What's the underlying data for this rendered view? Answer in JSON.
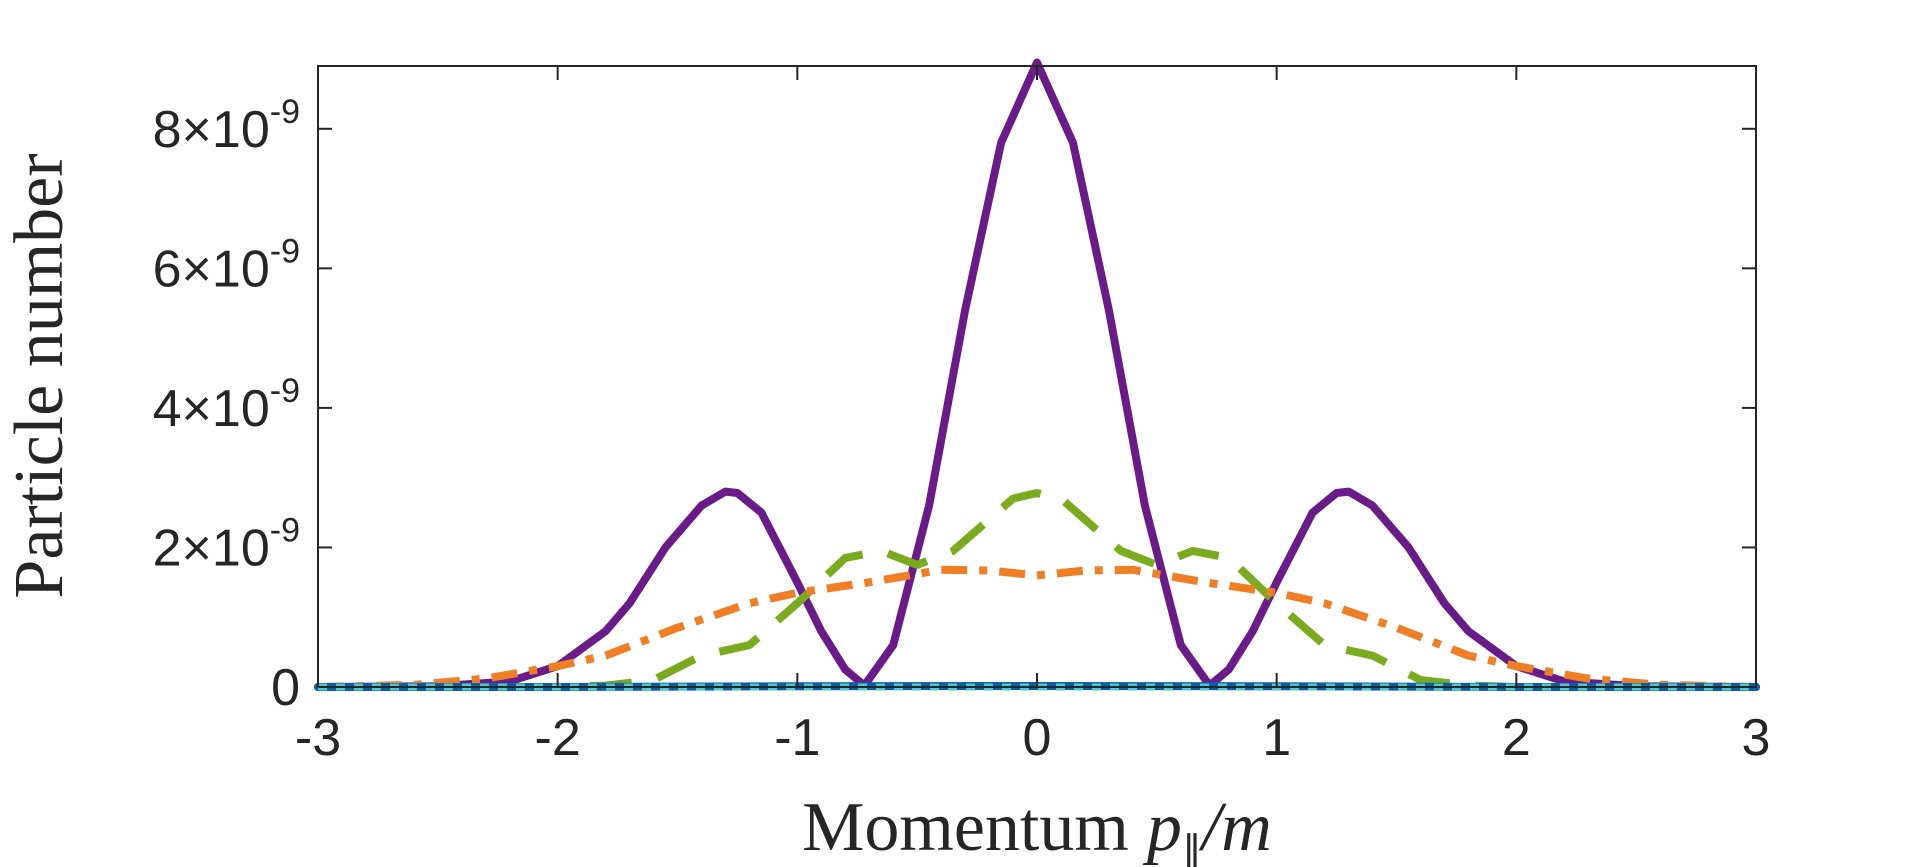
{
  "chart_data": {
    "type": "line",
    "title": "",
    "xlabel": "Momentum",
    "xlabel_math": "p",
    "xlabel_sub": "∥",
    "xlabel_div": "/m",
    "ylabel": "Particle number",
    "xlim": [
      -3,
      3
    ],
    "ylim": [
      0,
      8.9e-09
    ],
    "xticks": [
      "-3",
      "-2",
      "-1",
      "0",
      "1",
      "2",
      "3"
    ],
    "yticks": [
      {
        "mant": "0",
        "times": "",
        "exp": ""
      },
      {
        "mant": "2",
        "times": "×10",
        "exp": "-9"
      },
      {
        "mant": "4",
        "times": "×10",
        "exp": "-9"
      },
      {
        "mant": "6",
        "times": "×10",
        "exp": "-9"
      },
      {
        "mant": "8",
        "times": "×10",
        "exp": "-9"
      }
    ],
    "ytick_values": [
      0,
      2e-09,
      4e-09,
      6e-09,
      8e-09
    ],
    "series": [
      {
        "name": "solid purple",
        "color": "#6a1b8a",
        "style": "solid",
        "x": [
          -3.0,
          -2.5,
          -2.2,
          -2.0,
          -1.8,
          -1.7,
          -1.55,
          -1.4,
          -1.3,
          -1.25,
          -1.15,
          -1.0,
          -0.9,
          -0.8,
          -0.72,
          -0.6,
          -0.45,
          -0.3,
          -0.15,
          0.0,
          0.15,
          0.3,
          0.45,
          0.6,
          0.72,
          0.8,
          0.9,
          1.0,
          1.15,
          1.25,
          1.3,
          1.4,
          1.55,
          1.7,
          1.8,
          2.0,
          2.2,
          2.5,
          3.0
        ],
        "y": [
          0,
          1e-11,
          8e-11,
          3e-10,
          8e-10,
          1.2e-09,
          2e-09,
          2.6e-09,
          2.8e-09,
          2.78e-09,
          2.5e-09,
          1.5e-09,
          8e-10,
          2.5e-10,
          2e-11,
          6e-10,
          2.6e-09,
          5.4e-09,
          7.8e-09,
          8.95e-09,
          7.8e-09,
          5.4e-09,
          2.6e-09,
          6e-10,
          2e-11,
          2.5e-10,
          8e-10,
          1.5e-09,
          2.5e-09,
          2.78e-09,
          2.8e-09,
          2.6e-09,
          2e-09,
          1.2e-09,
          8e-10,
          3e-10,
          8e-11,
          1e-11,
          0
        ]
      },
      {
        "name": "dashed green",
        "color": "#7aab1f",
        "style": "dashed",
        "x": [
          -3.0,
          -2.0,
          -1.8,
          -1.6,
          -1.4,
          -1.2,
          -1.0,
          -0.8,
          -0.65,
          -0.5,
          -0.35,
          -0.2,
          -0.1,
          0.0,
          0.1,
          0.2,
          0.35,
          0.5,
          0.65,
          0.8,
          1.0,
          1.2,
          1.4,
          1.6,
          1.8,
          2.0,
          3.0
        ],
        "y": [
          0,
          0,
          2e-11,
          1e-10,
          4.5e-10,
          6e-10,
          1.2e-09,
          1.85e-09,
          1.95e-09,
          1.75e-09,
          1.95e-09,
          2.4e-09,
          2.7e-09,
          2.78e-09,
          2.7e-09,
          2.4e-09,
          1.95e-09,
          1.75e-09,
          1.95e-09,
          1.85e-09,
          1.2e-09,
          6e-10,
          4.5e-10,
          1e-10,
          2e-11,
          0,
          0
        ]
      },
      {
        "name": "dash-dot orange",
        "color": "#ef7e25",
        "style": "dashdot",
        "x": [
          -3.0,
          -2.6,
          -2.3,
          -2.0,
          -1.8,
          -1.5,
          -1.2,
          -1.0,
          -0.7,
          -0.4,
          -0.2,
          0.0,
          0.2,
          0.4,
          0.7,
          1.0,
          1.2,
          1.5,
          1.8,
          2.0,
          2.3,
          2.6,
          3.0
        ],
        "y": [
          0,
          3e-11,
          1.2e-10,
          3e-10,
          4.5e-10,
          8.5e-10,
          1.2e-09,
          1.35e-09,
          1.5e-09,
          1.68e-09,
          1.67e-09,
          1.6e-09,
          1.67e-09,
          1.68e-09,
          1.5e-09,
          1.35e-09,
          1.2e-09,
          8.5e-10,
          4.5e-10,
          3e-10,
          1.2e-10,
          3e-11,
          0
        ]
      },
      {
        "name": "solid blue",
        "color": "#0a5fa8",
        "style": "solid",
        "x": [
          -3.0,
          -2.0,
          -1.0,
          0.0,
          1.0,
          2.0,
          3.0
        ],
        "y": [
          0,
          0,
          1e-11,
          1.5e-11,
          1e-11,
          0,
          0
        ]
      },
      {
        "name": "dotted cyan",
        "color": "#4ec9c9",
        "style": "dotted",
        "x": [
          -3.0,
          -2.0,
          -1.0,
          0.0,
          1.0,
          2.0,
          3.0
        ],
        "y": [
          0,
          0,
          0,
          0,
          0,
          0,
          0
        ]
      }
    ]
  }
}
